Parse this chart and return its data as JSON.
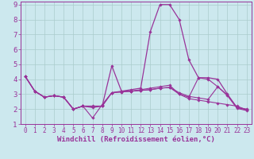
{
  "xlabel": "Windchill (Refroidissement éolien,°C)",
  "background_color": "#cce8ee",
  "line_color": "#993399",
  "grid_color": "#aacccc",
  "xlim": [
    -0.5,
    23.5
  ],
  "ylim": [
    1,
    9.2
  ],
  "xticks": [
    0,
    1,
    2,
    3,
    4,
    5,
    6,
    7,
    8,
    9,
    10,
    11,
    12,
    13,
    14,
    15,
    16,
    17,
    18,
    19,
    20,
    21,
    22,
    23
  ],
  "yticks": [
    1,
    2,
    3,
    4,
    5,
    6,
    7,
    8,
    9
  ],
  "series1": [
    4.2,
    3.2,
    2.8,
    2.9,
    2.8,
    2.0,
    2.2,
    2.2,
    2.2,
    4.9,
    3.2,
    3.3,
    3.4,
    7.2,
    9.0,
    9.0,
    8.0,
    5.3,
    4.1,
    4.1,
    4.0,
    3.0,
    2.1,
    2.0
  ],
  "series2": [
    4.2,
    3.2,
    2.8,
    2.9,
    2.8,
    2.0,
    2.2,
    1.4,
    2.3,
    3.1,
    3.2,
    3.2,
    3.3,
    3.4,
    3.5,
    3.6,
    3.0,
    2.7,
    2.6,
    2.5,
    2.4,
    2.3,
    2.2,
    1.95
  ],
  "series3": [
    4.2,
    3.2,
    2.8,
    2.9,
    2.8,
    2.0,
    2.2,
    2.1,
    2.2,
    3.1,
    3.15,
    3.2,
    3.25,
    3.3,
    3.4,
    3.45,
    3.1,
    2.85,
    2.75,
    2.65,
    3.5,
    2.95,
    2.1,
    1.95
  ],
  "series4": [
    4.2,
    3.2,
    2.8,
    2.9,
    2.8,
    2.0,
    2.2,
    2.15,
    2.2,
    3.1,
    3.15,
    3.2,
    3.25,
    3.3,
    3.4,
    3.45,
    3.0,
    2.8,
    4.1,
    4.0,
    3.5,
    2.9,
    2.05,
    1.9
  ],
  "xlabel_fontsize": 6.5,
  "tick_fontsize_x": 5.5,
  "tick_fontsize_y": 6.5
}
